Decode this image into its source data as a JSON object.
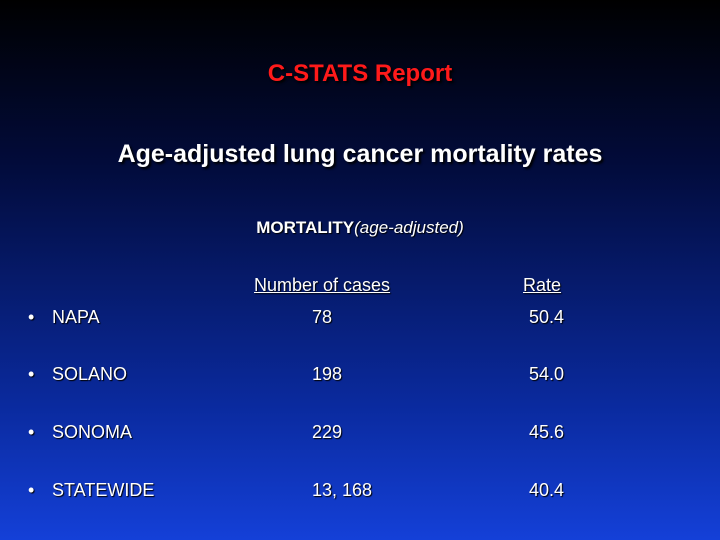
{
  "title": "C-STATS Report",
  "subtitle": "Age-adjusted lung cancer mortality rates",
  "section": {
    "heading": "MORTALITY",
    "qualifier": "(age-adjusted)"
  },
  "table": {
    "columns": [
      "Number of cases",
      "Rate"
    ],
    "rows": [
      {
        "bullet": "•",
        "county": "NAPA",
        "cases": "78",
        "rate": "50.4"
      },
      {
        "bullet": "•",
        "county": "SOLANO",
        "cases": "198",
        "rate": "54.0"
      },
      {
        "bullet": "•",
        "county": "SONOMA",
        "cases": "229",
        "rate": "45.6"
      },
      {
        "bullet": "•",
        "county": "STATEWIDE",
        "cases": "13, 168",
        "rate": "40.4"
      }
    ]
  },
  "colors": {
    "title": "#ff1a1a",
    "text": "#ffffff",
    "background_top": "#000000",
    "background_bottom": "#1440d8"
  }
}
